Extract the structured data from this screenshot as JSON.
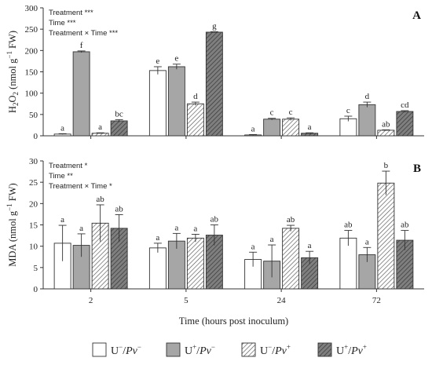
{
  "chart_data": [
    {
      "type": "bar",
      "panel": "A",
      "ylabel": {
        "base": "H",
        "sub": "2",
        "mid": "O",
        "sub2": "2",
        "tail": " (nmol g",
        "sup": "−1",
        "end": " FW)"
      },
      "ylim": [
        0,
        300
      ],
      "yticks": [
        0,
        50,
        100,
        150,
        200,
        250,
        300
      ],
      "categories": [
        "2",
        "5",
        "24",
        "72"
      ],
      "stats": [
        "Treatment ***",
        "Time ***",
        "Treatment × Time ***"
      ],
      "series": [
        {
          "name": "U⁻/Pv⁻",
          "values": [
            4,
            153,
            2,
            40
          ],
          "errors": [
            1,
            9,
            1,
            6
          ],
          "letters": [
            "a",
            "e",
            "a",
            "c"
          ]
        },
        {
          "name": "U⁺/Pv⁻",
          "values": [
            197,
            162,
            39,
            73
          ],
          "errors": [
            2,
            6,
            2,
            6
          ],
          "letters": [
            "f",
            "e",
            "c",
            "d"
          ]
        },
        {
          "name": "U⁻/Pv⁺",
          "values": [
            6,
            75,
            39,
            13
          ],
          "errors": [
            1,
            4,
            3,
            1
          ],
          "letters": [
            "a",
            "d",
            "c",
            "ab"
          ]
        },
        {
          "name": "U⁺/Pv⁺",
          "values": [
            35,
            243,
            6,
            57
          ],
          "errors": [
            3,
            1,
            1,
            2
          ],
          "letters": [
            "bc",
            "g",
            "a",
            "cd"
          ]
        }
      ]
    },
    {
      "type": "bar",
      "panel": "B",
      "ylabel": {
        "text": "MDA (nmol g",
        "sup": "−1",
        "end": " FW)"
      },
      "ylim": [
        0,
        30
      ],
      "yticks": [
        0,
        5,
        10,
        15,
        20,
        25,
        30
      ],
      "categories": [
        "2",
        "5",
        "24",
        "72"
      ],
      "xlabel": "Time (hours post inoculum)",
      "stats": [
        "Treatment *",
        "Time **",
        "Treatment × Time *"
      ],
      "series": [
        {
          "name": "U⁻/Pv⁻",
          "values": [
            10.7,
            9.6,
            6.9,
            11.9
          ],
          "errors": [
            4.2,
            1.1,
            1.7,
            1.8
          ],
          "letters": [
            "a",
            "a",
            "a",
            "ab"
          ]
        },
        {
          "name": "U⁺/Pv⁻",
          "values": [
            10.2,
            11.2,
            6.5,
            8.0
          ],
          "errors": [
            2.7,
            1.8,
            3.8,
            1.7
          ],
          "letters": [
            "a",
            "a",
            "a",
            "a"
          ]
        },
        {
          "name": "U⁻/Pv⁺",
          "values": [
            15.4,
            11.9,
            14.2,
            24.8
          ],
          "errors": [
            4.3,
            0.9,
            0.7,
            2.8
          ],
          "letters": [
            "ab",
            "a",
            "ab",
            "b"
          ]
        },
        {
          "name": "U⁺/Pv⁺",
          "values": [
            14.2,
            12.6,
            7.3,
            11.4
          ],
          "errors": [
            3.2,
            2.4,
            1.5,
            2.3
          ],
          "letters": [
            "ab",
            "ab",
            "a",
            "ab"
          ]
        }
      ]
    }
  ],
  "legend": [
    {
      "u": "U",
      "usup": "−",
      "pv": "Pv",
      "pvsup": "−",
      "fill": "white"
    },
    {
      "u": "U",
      "usup": "+",
      "pv": "Pv",
      "pvsup": "−",
      "fill": "gray"
    },
    {
      "u": "U",
      "usup": "−",
      "pv": "Pv",
      "pvsup": "+",
      "fill": "hatch-light"
    },
    {
      "u": "U",
      "usup": "+",
      "pv": "Pv",
      "pvsup": "+",
      "fill": "hatch-dark"
    }
  ],
  "colors": {
    "white": "#ffffff",
    "gray": "#a6a6a6",
    "hatch_dark_bg": "#7f7f7f",
    "stroke": "#333333"
  }
}
